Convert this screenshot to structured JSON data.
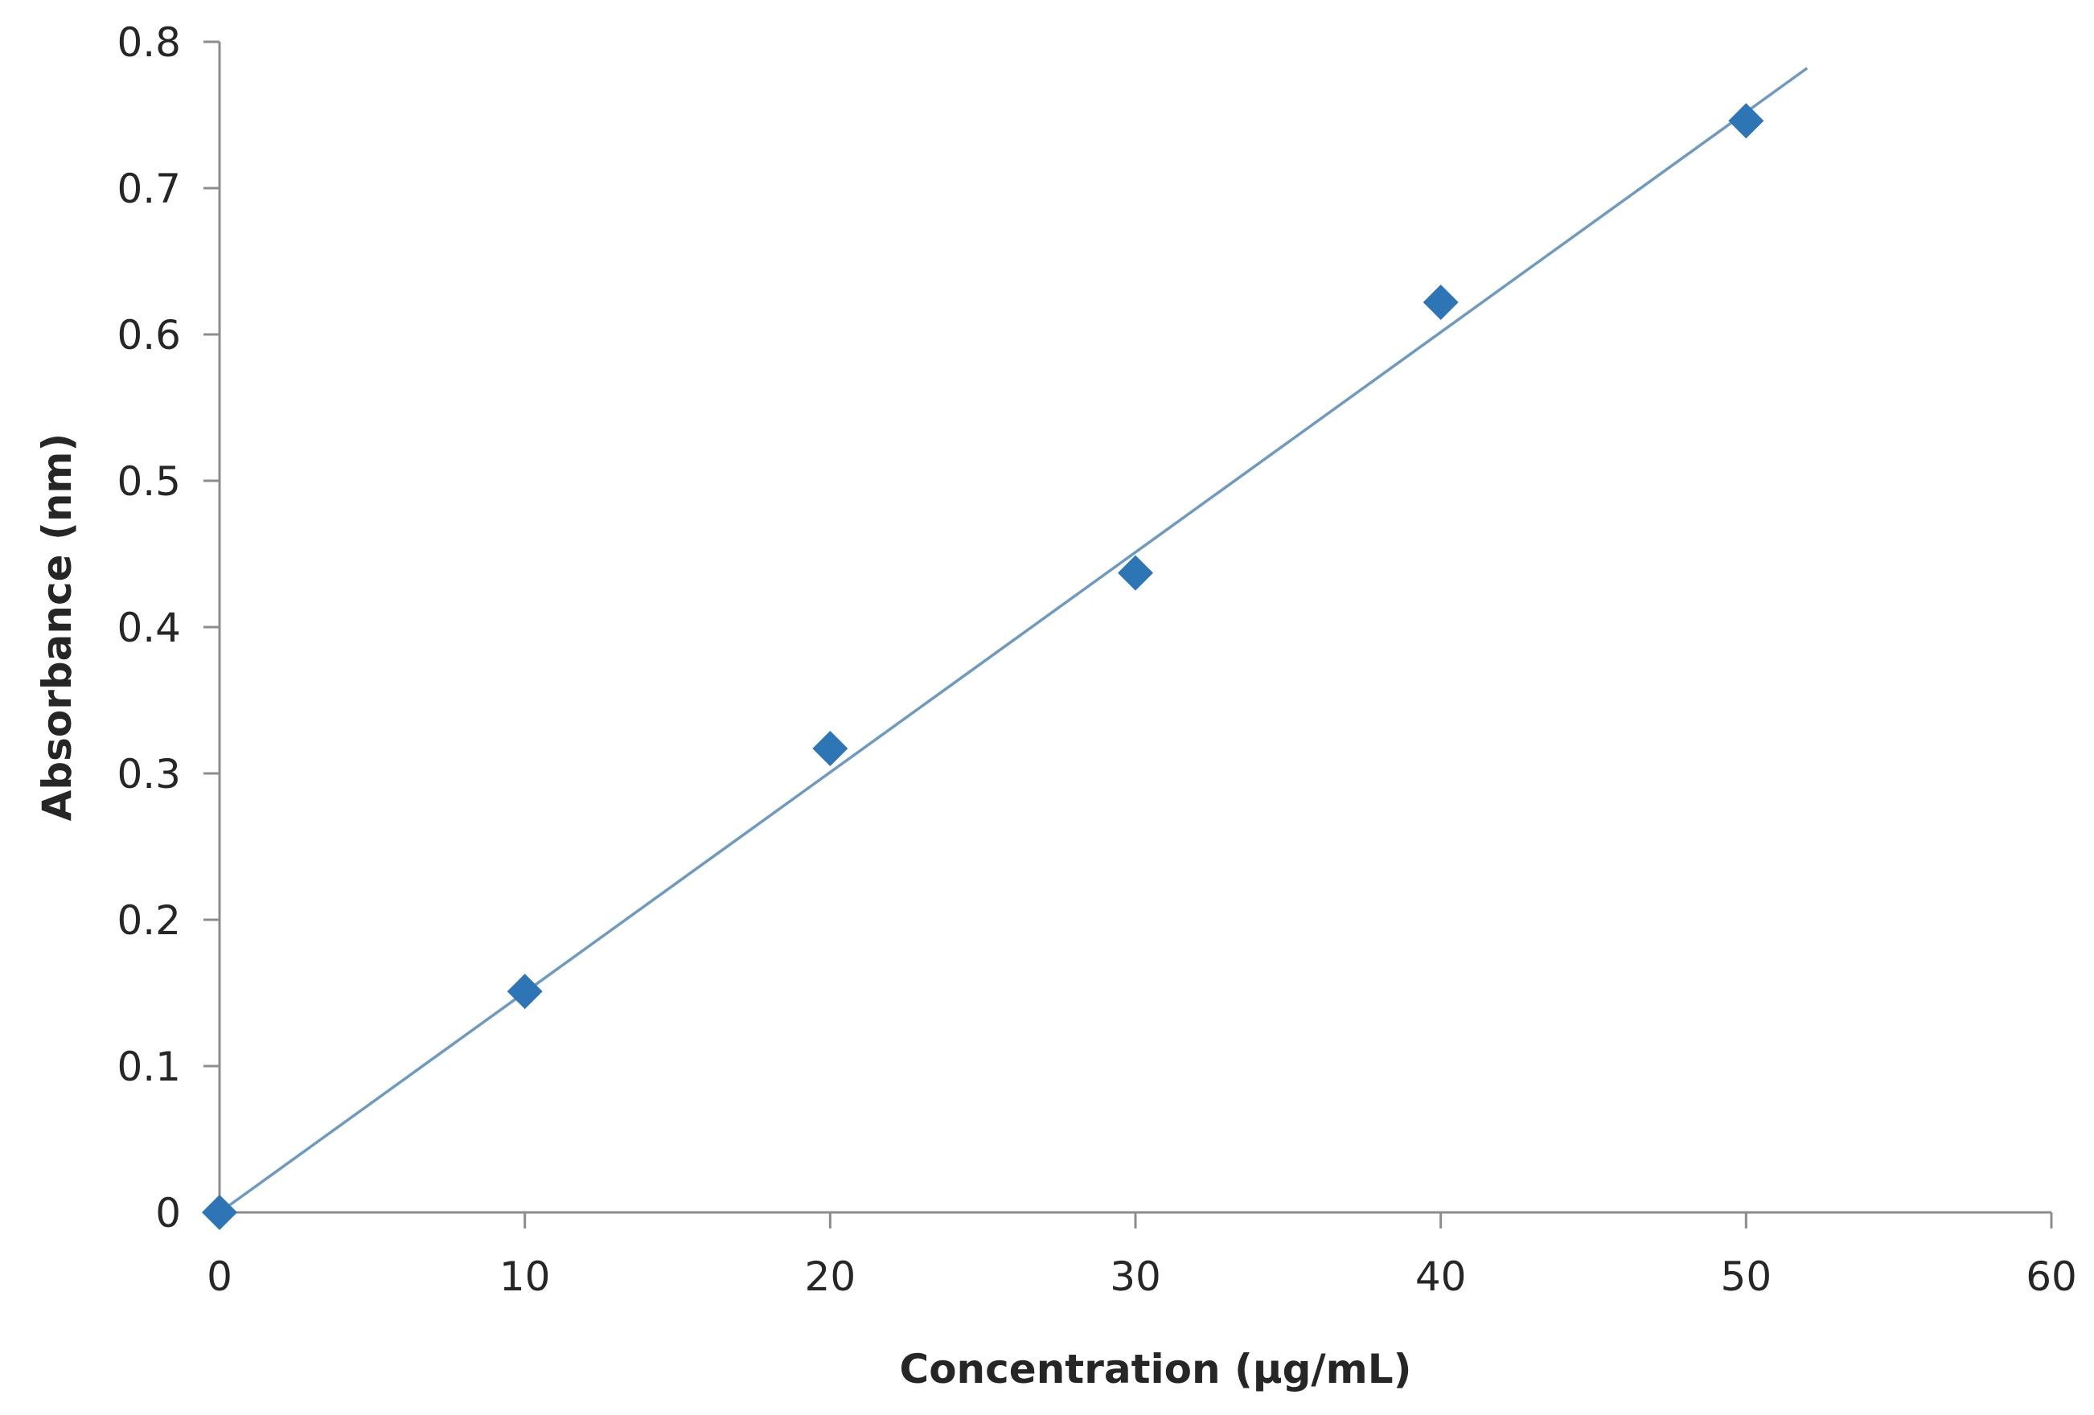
{
  "chart_data": {
    "type": "scatter",
    "title": "",
    "xlabel": "Concentration (µg/mL)",
    "ylabel": "Absorbance (nm)",
    "xlim": [
      0,
      60
    ],
    "ylim": [
      0,
      0.8
    ],
    "xticks": [
      0,
      10,
      20,
      30,
      40,
      50,
      60
    ],
    "yticks": [
      0,
      0.1,
      0.2,
      0.3,
      0.4,
      0.5,
      0.6,
      0.7,
      0.8
    ],
    "xtick_labels": [
      "0",
      "10",
      "20",
      "30",
      "40",
      "50",
      "60"
    ],
    "ytick_labels": [
      "0",
      "0.1",
      "0.2",
      "0.3",
      "0.4",
      "0.5",
      "0.6",
      "0.7",
      "0.8"
    ],
    "grid": false,
    "legend": "none",
    "series": [
      {
        "marker": "diamond",
        "color": "#2E75B6",
        "x": [
          0,
          10,
          20,
          30,
          40,
          50
        ],
        "y": [
          0,
          0.151,
          0.317,
          0.437,
          0.622,
          0.746
        ]
      }
    ],
    "trendline": {
      "type": "linear",
      "color": "#6F9AC0",
      "x": [
        0,
        52
      ],
      "y": [
        0,
        0.782
      ]
    }
  }
}
